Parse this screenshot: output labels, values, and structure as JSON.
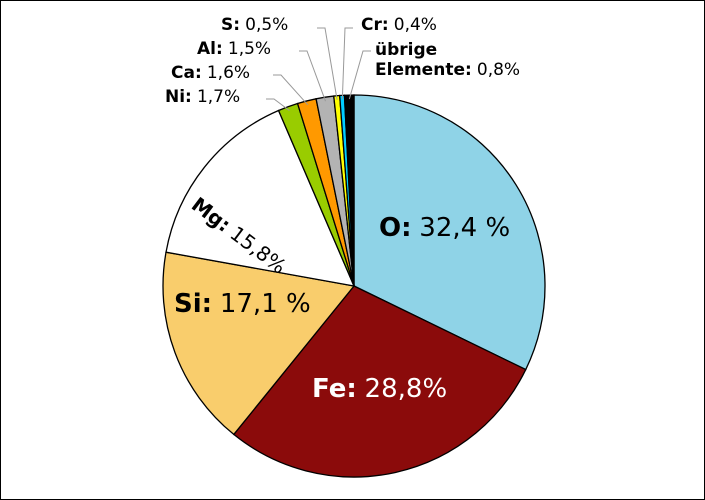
{
  "chart_data": {
    "type": "pie",
    "categories": [
      "O:",
      "Fe:",
      "Si:",
      "Mg:",
      "Ni:",
      "Ca:",
      "Al:",
      "S:",
      "Cr:",
      "übrige Elemente:"
    ],
    "values": [
      32.4,
      28.8,
      17.1,
      15.8,
      1.7,
      1.6,
      1.5,
      0.5,
      0.4,
      0.8
    ],
    "value_labels": [
      "32,4 %",
      "28,8%",
      "17,1 %",
      "15,8%",
      "1,7%",
      "1,6%",
      "1,5%",
      "0,5%",
      "0,4%",
      "0,8%"
    ],
    "colors": [
      "#8fd3e7",
      "#8b0b0b",
      "#f9cd6c",
      "#ffffff",
      "#99cc00",
      "#ff9900",
      "#b3b3b3",
      "#ffff00",
      "#00ccff",
      "#000000"
    ]
  }
}
